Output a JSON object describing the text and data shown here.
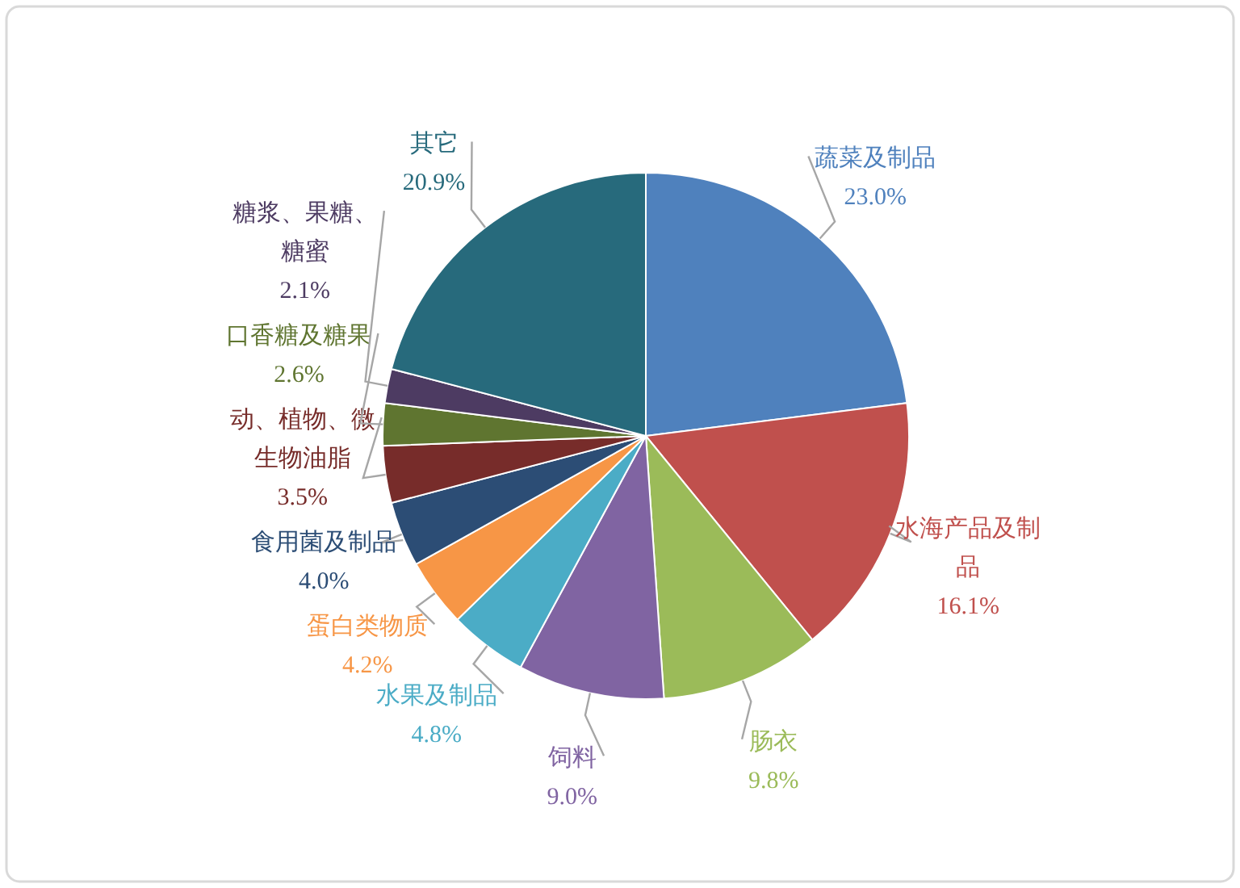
{
  "chart_data": {
    "type": "pie",
    "categories": [
      "蔬菜及制品",
      "水海产品及制品",
      "肠衣",
      "饲料",
      "水果及制品",
      "蛋白类物质",
      "食用菌及制品",
      "动、植物、微生物油脂",
      "口香糖及糖果",
      "糖浆、果糖、糖蜜",
      "其它"
    ],
    "values": [
      23.0,
      16.1,
      9.8,
      9.0,
      4.8,
      4.2,
      4.0,
      3.5,
      2.6,
      2.1,
      20.9
    ],
    "value_labels": [
      "23.0%",
      "16.1%",
      "9.8%",
      "9.0%",
      "4.8%",
      "4.2%",
      "4.0%",
      "3.5%",
      "2.6%",
      "2.1%",
      "20.9%"
    ],
    "colors": [
      "#4f81bd",
      "#c0504d",
      "#9bbb59",
      "#8064a2",
      "#4bacc6",
      "#f79646",
      "#2c4d75",
      "#772c2a",
      "#5f7530",
      "#4d3b62",
      "#276a7c"
    ]
  }
}
